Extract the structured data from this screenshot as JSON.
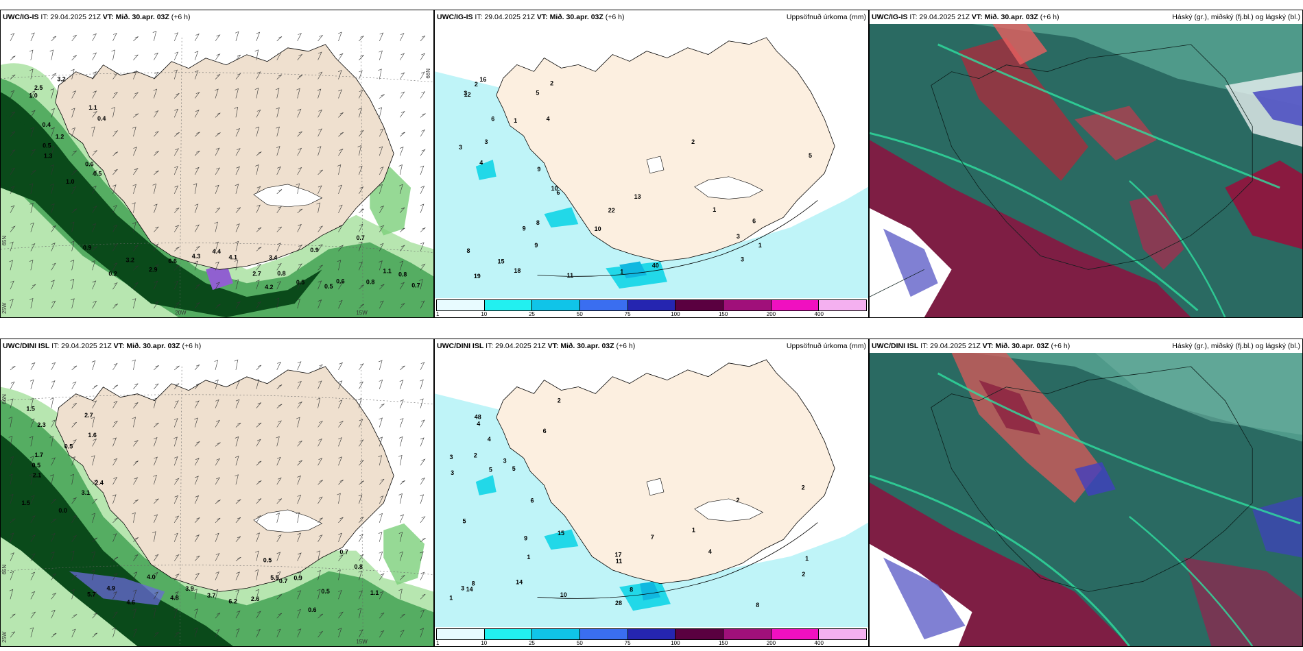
{
  "legend": {
    "colors": [
      "#e8fbff",
      "#22f0f0",
      "#10c4e8",
      "#3a6ef0",
      "#2525b0",
      "#5a0040",
      "#a0107a",
      "#f010c0",
      "#f4b0f0"
    ],
    "ticks": [
      "1",
      "10",
      "25",
      "50",
      "75",
      "100",
      "150",
      "200",
      "400"
    ]
  },
  "rows": [
    {
      "model": "UWC/IG-IS",
      "it": "IT: 29.04.2025 21Z",
      "vt_label": "VT:",
      "vt": "Mið. 30.apr. 03Z",
      "lead": "(+6 h)",
      "precip_title": "Uppsöfnuð úrkoma (mm)",
      "cloud_title": "Háský (gr.), miðský (fj.bl.) og lágský (bl.)",
      "coords": [
        "65N",
        "20W",
        "15W",
        "25W",
        "66N"
      ],
      "wind_labels": [
        "3.2",
        "2.5",
        "1.0",
        "1.1",
        "0.4",
        "0.4",
        "1.2",
        "0.5",
        "1.3",
        "0.6",
        "0.5",
        "1.0",
        "0.9",
        "0.2",
        "3.2",
        "2.9",
        "6.6",
        "4.3",
        "4.4",
        "4.1",
        "2.7",
        "3.4",
        "4.2",
        "0.8",
        "0.5",
        "0.9",
        "0.5",
        "0.6",
        "0.7",
        "0.8",
        "1.1",
        "0.8",
        "0.7"
      ],
      "precip_labels": [
        "2",
        "4",
        "6",
        "9",
        "3",
        "12",
        "1",
        "4",
        "3",
        "2",
        "5",
        "16",
        "3",
        "13",
        "18",
        "6",
        "19",
        "22",
        "10",
        "11",
        "8",
        "9",
        "10",
        "8",
        "9",
        "1",
        "15",
        "40",
        "1",
        "5",
        "6",
        "3",
        "3",
        "2",
        "1"
      ]
    },
    {
      "model": "UWC/DINI ISL",
      "it": "IT: 29.04.2025 21Z",
      "vt_label": "VT:",
      "vt": "Mið. 30.apr. 03Z",
      "lead": "(+6 h)",
      "precip_title": "Uppsöfnuð úrkoma (mm)",
      "cloud_title": "Háský (gr.), miðský (fj.bl.) og lágský (bl.)",
      "coords": [
        "66N",
        "65N",
        "25W",
        "15W"
      ],
      "wind_labels": [
        "1.5",
        "2.7",
        "2.3",
        "1.6",
        "0.5",
        "1.7",
        "0.5",
        "2.1",
        "2.4",
        "3.1",
        "1.5",
        "0.0",
        "5.7",
        "4.9",
        "4.6",
        "4.0",
        "4.8",
        "3.9",
        "3.7",
        "6.2",
        "2.6",
        "5.5",
        "0.5",
        "0.7",
        "0.9",
        "0.6",
        "0.5",
        "0.7",
        "0.8",
        "1.1"
      ],
      "precip_labels": [
        "2",
        "3",
        "5",
        "6",
        "4",
        "2",
        "3",
        "5",
        "6",
        "48",
        "3",
        "4",
        "1",
        "1",
        "14",
        "14",
        "17",
        "10",
        "9",
        "8",
        "3",
        "11",
        "15",
        "28",
        "8",
        "5",
        "4",
        "2",
        "2",
        "2",
        "1",
        "7",
        "8",
        "1"
      ]
    }
  ]
}
